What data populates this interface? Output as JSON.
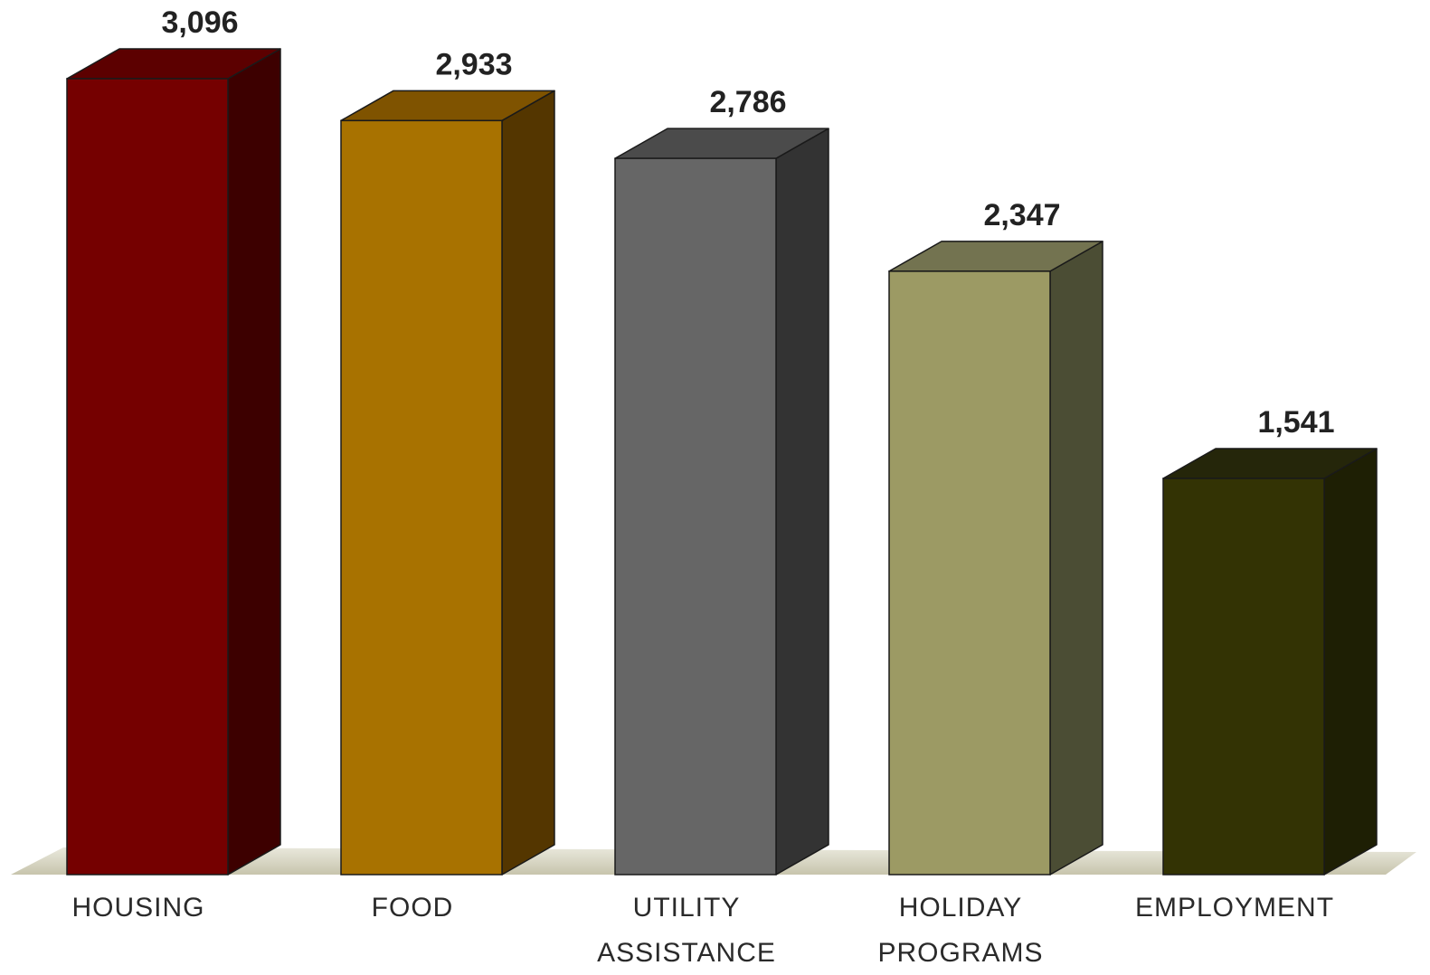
{
  "chart_data": {
    "type": "bar",
    "style": "3d-column",
    "categories": [
      [
        "HOUSING"
      ],
      [
        "FOOD"
      ],
      [
        "UTILITY",
        "ASSISTANCE"
      ],
      [
        "HOLIDAY",
        "PROGRAMS"
      ],
      [
        "EMPLOYMENT"
      ]
    ],
    "values": [
      3096,
      2933,
      2786,
      2347,
      1541
    ],
    "value_labels": [
      "3,096",
      "2,933",
      "2,786",
      "2,347",
      "1,541"
    ],
    "colors": {
      "front": [
        "#750000",
        "#a87200",
        "#666666",
        "#9c9a64",
        "#333304"
      ],
      "top": [
        "#5c0000",
        "#7f5300",
        "#4b4b4b",
        "#737350",
        "#25260a"
      ],
      "side": [
        "#3d0000",
        "#543600",
        "#333333",
        "#4b4d34",
        "#1e1f04"
      ]
    },
    "ylim": [
      0,
      3096
    ],
    "grid": false,
    "legend": "none",
    "title": "",
    "xlabel": "",
    "ylabel": ""
  }
}
